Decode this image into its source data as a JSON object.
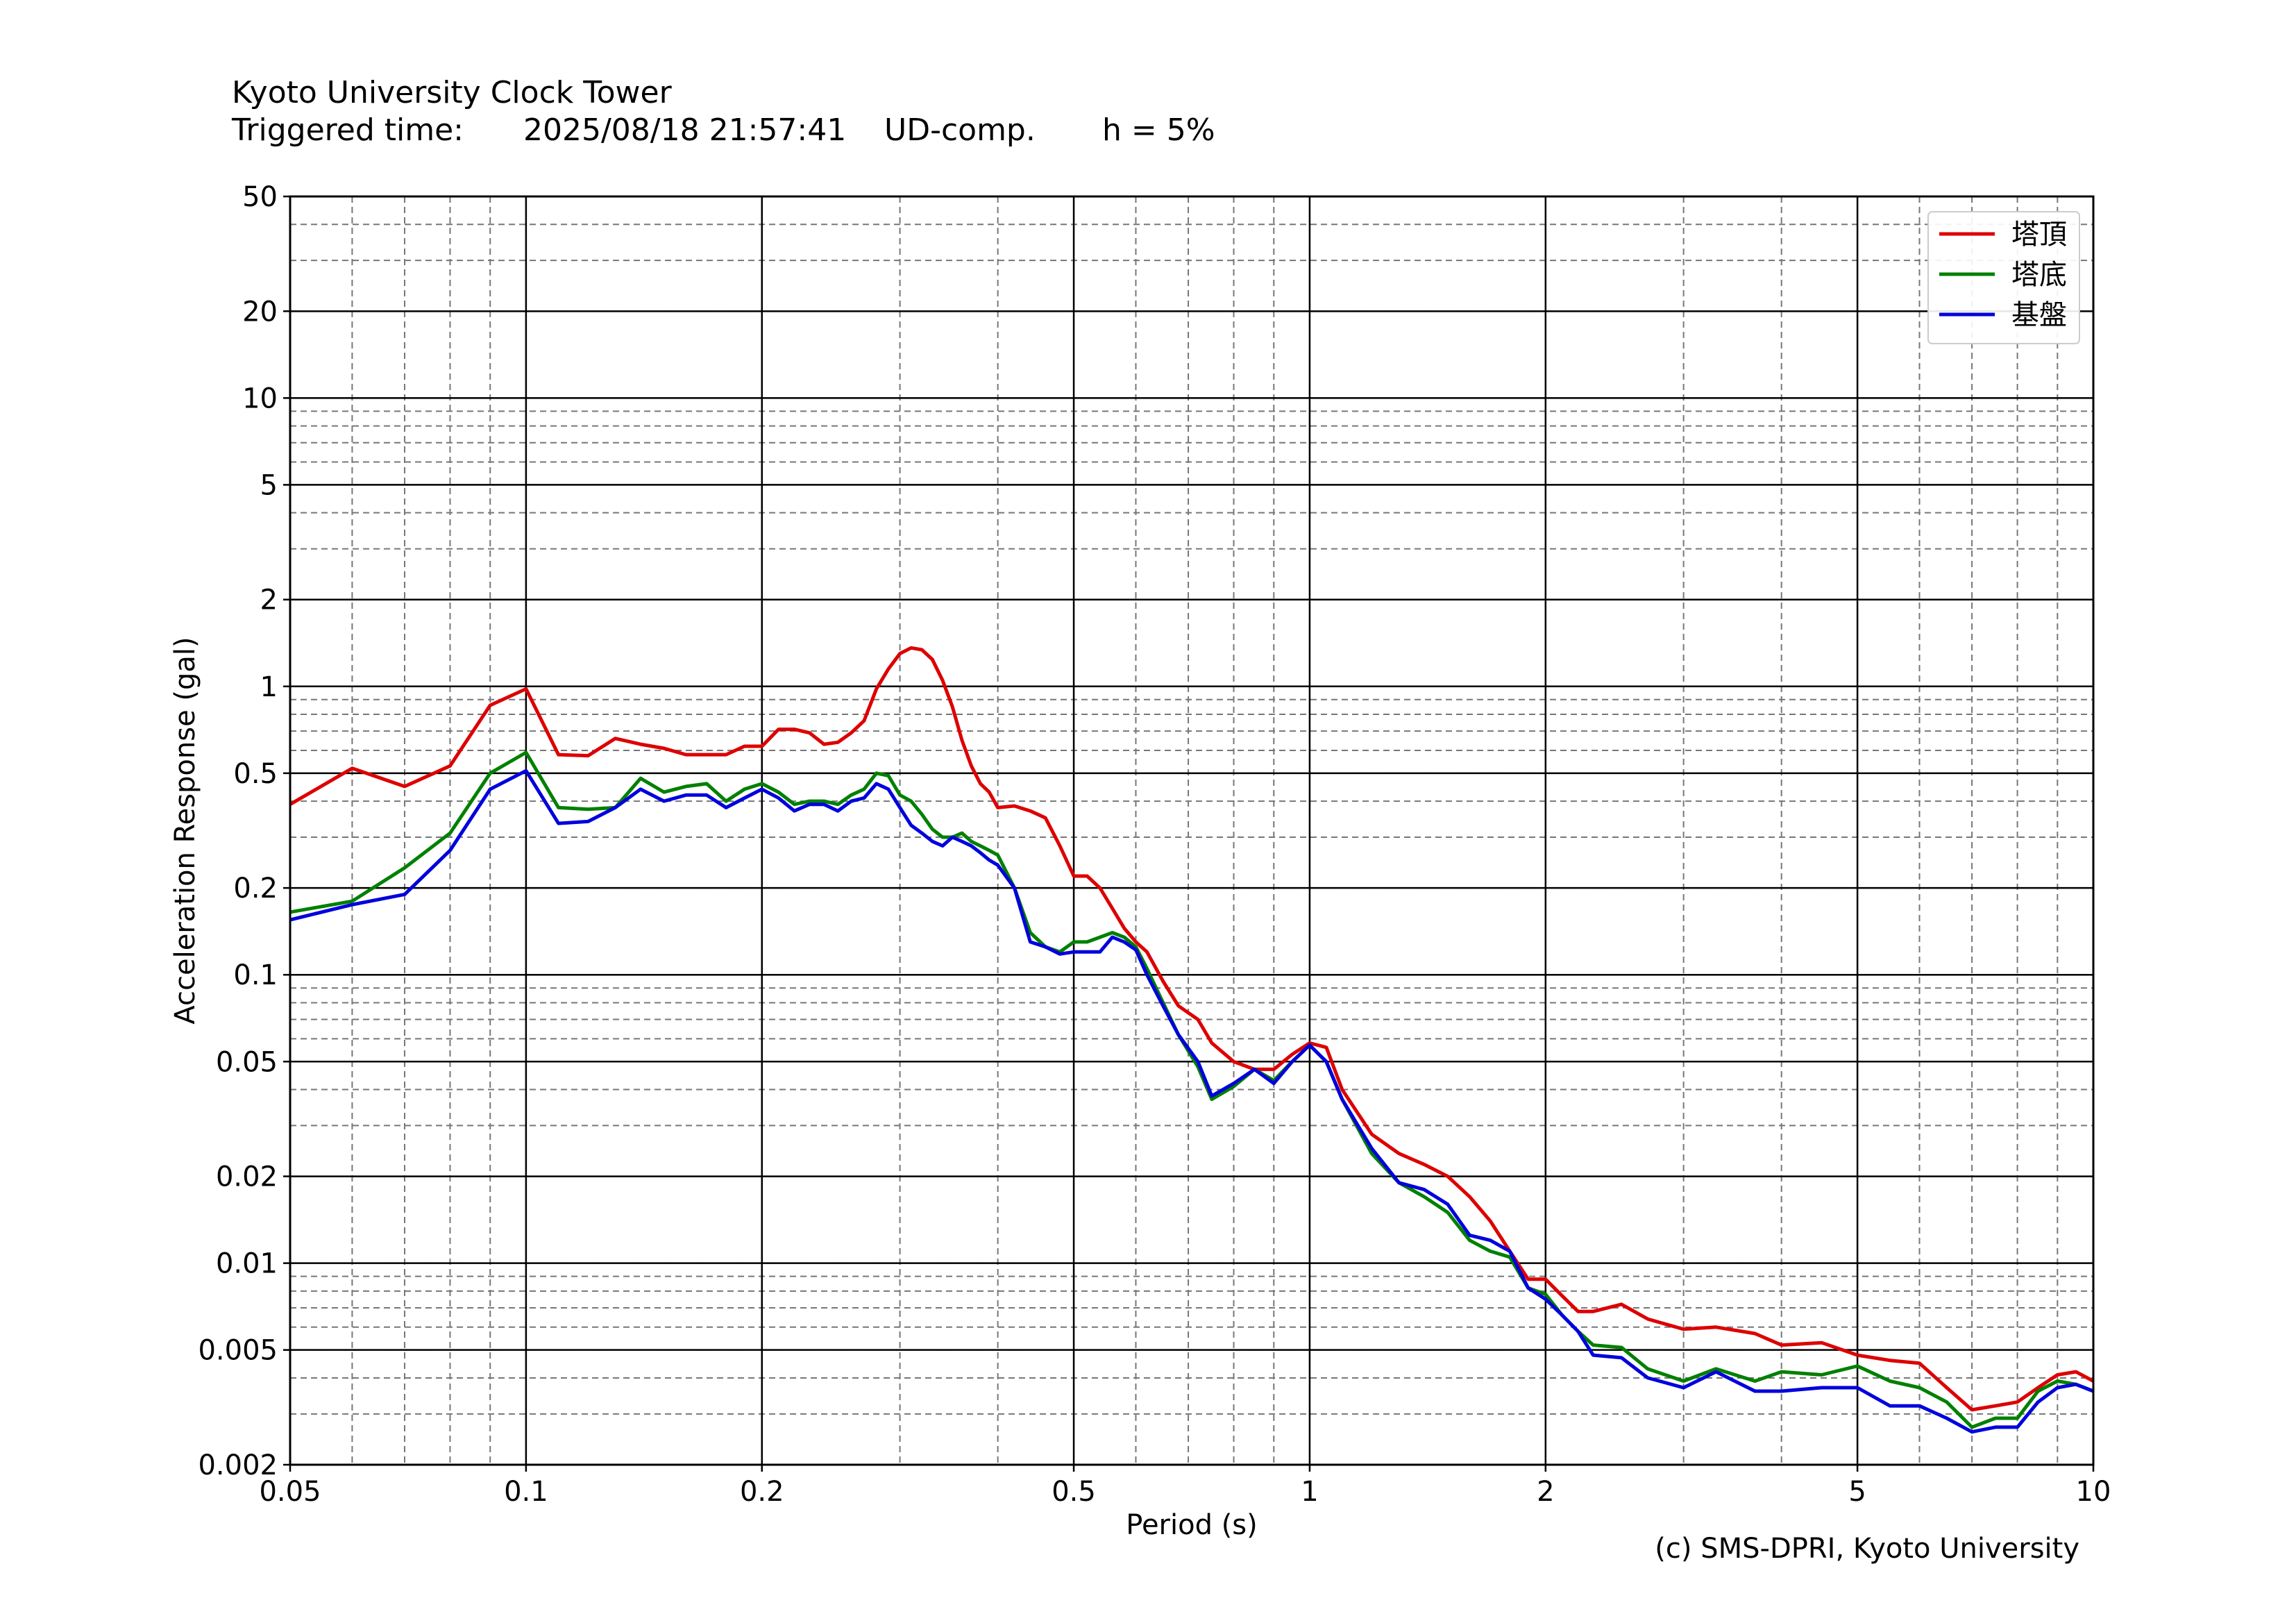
{
  "header": {
    "title": "Kyoto University Clock Tower",
    "triggered_label": "Triggered time:",
    "triggered_time": "2025/08/18 21:57:41",
    "component": "UD-comp.",
    "damping": "h = 5%"
  },
  "credit": "(c) SMS-DPRI, Kyoto University",
  "chart_data": {
    "type": "line",
    "xlabel": "Period (s)",
    "ylabel": "Acceleration Response (gal)",
    "xscale": "log",
    "yscale": "log",
    "xlim": [
      0.05,
      10
    ],
    "ylim": [
      0.002,
      50
    ],
    "xticks": [
      0.05,
      0.1,
      0.2,
      0.5,
      1,
      2,
      5,
      10
    ],
    "xtick_labels": [
      "0.05",
      "0.1",
      "0.2",
      "0.5",
      "1",
      "2",
      "5",
      "10"
    ],
    "yticks": [
      0.002,
      0.005,
      0.01,
      0.02,
      0.05,
      0.1,
      0.2,
      0.5,
      1,
      2,
      5,
      10,
      20,
      50
    ],
    "ytick_labels": [
      "0.002",
      "0.005",
      "0.01",
      "0.02",
      "0.05",
      "0.1",
      "0.2",
      "0.5",
      "1",
      "2",
      "5",
      "10",
      "20",
      "50"
    ],
    "grid": "major solid, minor dashed",
    "legend_position": "top-right",
    "series": [
      {
        "name": "塔頂",
        "color": "#dd0000",
        "points": [
          [
            0.05,
            0.39
          ],
          [
            0.06,
            0.52
          ],
          [
            0.07,
            0.45
          ],
          [
            0.08,
            0.53
          ],
          [
            0.09,
            0.86
          ],
          [
            0.1,
            0.98
          ],
          [
            0.11,
            0.58
          ],
          [
            0.12,
            0.575
          ],
          [
            0.13,
            0.66
          ],
          [
            0.14,
            0.63
          ],
          [
            0.15,
            0.61
          ],
          [
            0.16,
            0.58
          ],
          [
            0.17,
            0.58
          ],
          [
            0.18,
            0.58
          ],
          [
            0.19,
            0.62
          ],
          [
            0.2,
            0.62
          ],
          [
            0.21,
            0.71
          ],
          [
            0.22,
            0.71
          ],
          [
            0.23,
            0.69
          ],
          [
            0.24,
            0.63
          ],
          [
            0.25,
            0.64
          ],
          [
            0.26,
            0.69
          ],
          [
            0.27,
            0.76
          ],
          [
            0.28,
            0.98
          ],
          [
            0.29,
            1.15
          ],
          [
            0.3,
            1.3
          ],
          [
            0.31,
            1.36
          ],
          [
            0.32,
            1.34
          ],
          [
            0.33,
            1.24
          ],
          [
            0.34,
            1.05
          ],
          [
            0.35,
            0.85
          ],
          [
            0.36,
            0.65
          ],
          [
            0.37,
            0.53
          ],
          [
            0.38,
            0.46
          ],
          [
            0.39,
            0.43
          ],
          [
            0.4,
            0.38
          ],
          [
            0.42,
            0.385
          ],
          [
            0.44,
            0.37
          ],
          [
            0.46,
            0.35
          ],
          [
            0.48,
            0.28
          ],
          [
            0.5,
            0.22
          ],
          [
            0.52,
            0.22
          ],
          [
            0.54,
            0.2
          ],
          [
            0.56,
            0.17
          ],
          [
            0.58,
            0.145
          ],
          [
            0.6,
            0.13
          ],
          [
            0.62,
            0.12
          ],
          [
            0.65,
            0.095
          ],
          [
            0.68,
            0.078
          ],
          [
            0.72,
            0.07
          ],
          [
            0.75,
            0.058
          ],
          [
            0.8,
            0.05
          ],
          [
            0.85,
            0.047
          ],
          [
            0.9,
            0.047
          ],
          [
            0.95,
            0.053
          ],
          [
            1.0,
            0.058
          ],
          [
            1.05,
            0.056
          ],
          [
            1.1,
            0.04
          ],
          [
            1.2,
            0.028
          ],
          [
            1.3,
            0.024
          ],
          [
            1.4,
            0.022
          ],
          [
            1.5,
            0.02
          ],
          [
            1.6,
            0.017
          ],
          [
            1.7,
            0.014
          ],
          [
            1.8,
            0.011
          ],
          [
            1.9,
            0.0088
          ],
          [
            2.0,
            0.0088
          ],
          [
            2.1,
            0.0077
          ],
          [
            2.2,
            0.0068
          ],
          [
            2.3,
            0.0068
          ],
          [
            2.5,
            0.0072
          ],
          [
            2.7,
            0.0064
          ],
          [
            3.0,
            0.0059
          ],
          [
            3.3,
            0.006
          ],
          [
            3.7,
            0.0057
          ],
          [
            4.0,
            0.0052
          ],
          [
            4.5,
            0.0053
          ],
          [
            5.0,
            0.0048
          ],
          [
            5.5,
            0.0046
          ],
          [
            6.0,
            0.0045
          ],
          [
            6.5,
            0.0037
          ],
          [
            7.0,
            0.0031
          ],
          [
            7.5,
            0.0032
          ],
          [
            8.0,
            0.0033
          ],
          [
            8.5,
            0.0037
          ],
          [
            9.0,
            0.0041
          ],
          [
            9.5,
            0.0042
          ],
          [
            10.0,
            0.0039
          ]
        ]
      },
      {
        "name": "塔底",
        "color": "#008000",
        "points": [
          [
            0.05,
            0.165
          ],
          [
            0.06,
            0.18
          ],
          [
            0.07,
            0.235
          ],
          [
            0.08,
            0.31
          ],
          [
            0.09,
            0.5
          ],
          [
            0.1,
            0.59
          ],
          [
            0.11,
            0.38
          ],
          [
            0.12,
            0.375
          ],
          [
            0.13,
            0.38
          ],
          [
            0.14,
            0.48
          ],
          [
            0.15,
            0.43
          ],
          [
            0.16,
            0.45
          ],
          [
            0.17,
            0.46
          ],
          [
            0.18,
            0.4
          ],
          [
            0.19,
            0.44
          ],
          [
            0.2,
            0.46
          ],
          [
            0.21,
            0.43
          ],
          [
            0.22,
            0.39
          ],
          [
            0.23,
            0.4
          ],
          [
            0.24,
            0.4
          ],
          [
            0.25,
            0.39
          ],
          [
            0.26,
            0.42
          ],
          [
            0.27,
            0.44
          ],
          [
            0.28,
            0.5
          ],
          [
            0.29,
            0.49
          ],
          [
            0.3,
            0.42
          ],
          [
            0.31,
            0.4
          ],
          [
            0.32,
            0.36
          ],
          [
            0.33,
            0.32
          ],
          [
            0.34,
            0.3
          ],
          [
            0.35,
            0.3
          ],
          [
            0.36,
            0.31
          ],
          [
            0.37,
            0.29
          ],
          [
            0.38,
            0.28
          ],
          [
            0.39,
            0.27
          ],
          [
            0.4,
            0.26
          ],
          [
            0.42,
            0.2
          ],
          [
            0.44,
            0.14
          ],
          [
            0.46,
            0.125
          ],
          [
            0.48,
            0.12
          ],
          [
            0.5,
            0.13
          ],
          [
            0.52,
            0.13
          ],
          [
            0.54,
            0.135
          ],
          [
            0.56,
            0.14
          ],
          [
            0.58,
            0.135
          ],
          [
            0.6,
            0.125
          ],
          [
            0.62,
            0.105
          ],
          [
            0.65,
            0.08
          ],
          [
            0.68,
            0.062
          ],
          [
            0.72,
            0.048
          ],
          [
            0.75,
            0.037
          ],
          [
            0.8,
            0.041
          ],
          [
            0.85,
            0.047
          ],
          [
            0.9,
            0.043
          ],
          [
            0.95,
            0.05
          ],
          [
            1.0,
            0.057
          ],
          [
            1.05,
            0.05
          ],
          [
            1.1,
            0.037
          ],
          [
            1.2,
            0.024
          ],
          [
            1.3,
            0.019
          ],
          [
            1.4,
            0.017
          ],
          [
            1.5,
            0.015
          ],
          [
            1.6,
            0.012
          ],
          [
            1.7,
            0.011
          ],
          [
            1.8,
            0.0105
          ],
          [
            1.9,
            0.0082
          ],
          [
            2.0,
            0.0078
          ],
          [
            2.1,
            0.0066
          ],
          [
            2.2,
            0.0058
          ],
          [
            2.3,
            0.0052
          ],
          [
            2.5,
            0.0051
          ],
          [
            2.7,
            0.0043
          ],
          [
            3.0,
            0.0039
          ],
          [
            3.3,
            0.0043
          ],
          [
            3.7,
            0.0039
          ],
          [
            4.0,
            0.0042
          ],
          [
            4.5,
            0.0041
          ],
          [
            5.0,
            0.0044
          ],
          [
            5.5,
            0.0039
          ],
          [
            6.0,
            0.0037
          ],
          [
            6.5,
            0.0033
          ],
          [
            7.0,
            0.0027
          ],
          [
            7.5,
            0.0029
          ],
          [
            8.0,
            0.0029
          ],
          [
            8.5,
            0.0036
          ],
          [
            9.0,
            0.0039
          ],
          [
            9.5,
            0.0038
          ],
          [
            10.0,
            0.0036
          ]
        ]
      },
      {
        "name": "基盤",
        "color": "#0000dd",
        "points": [
          [
            0.05,
            0.155
          ],
          [
            0.06,
            0.175
          ],
          [
            0.07,
            0.19
          ],
          [
            0.08,
            0.27
          ],
          [
            0.09,
            0.44
          ],
          [
            0.1,
            0.51
          ],
          [
            0.11,
            0.335
          ],
          [
            0.12,
            0.34
          ],
          [
            0.13,
            0.38
          ],
          [
            0.14,
            0.44
          ],
          [
            0.15,
            0.4
          ],
          [
            0.16,
            0.42
          ],
          [
            0.17,
            0.42
          ],
          [
            0.18,
            0.38
          ],
          [
            0.19,
            0.41
          ],
          [
            0.2,
            0.44
          ],
          [
            0.21,
            0.41
          ],
          [
            0.22,
            0.37
          ],
          [
            0.23,
            0.39
          ],
          [
            0.24,
            0.39
          ],
          [
            0.25,
            0.37
          ],
          [
            0.26,
            0.4
          ],
          [
            0.27,
            0.41
          ],
          [
            0.28,
            0.46
          ],
          [
            0.29,
            0.44
          ],
          [
            0.3,
            0.38
          ],
          [
            0.31,
            0.33
          ],
          [
            0.32,
            0.31
          ],
          [
            0.33,
            0.29
          ],
          [
            0.34,
            0.28
          ],
          [
            0.35,
            0.3
          ],
          [
            0.36,
            0.29
          ],
          [
            0.37,
            0.28
          ],
          [
            0.38,
            0.265
          ],
          [
            0.39,
            0.25
          ],
          [
            0.4,
            0.24
          ],
          [
            0.42,
            0.2
          ],
          [
            0.44,
            0.13
          ],
          [
            0.46,
            0.125
          ],
          [
            0.48,
            0.118
          ],
          [
            0.5,
            0.12
          ],
          [
            0.52,
            0.12
          ],
          [
            0.54,
            0.12
          ],
          [
            0.56,
            0.135
          ],
          [
            0.58,
            0.13
          ],
          [
            0.6,
            0.122
          ],
          [
            0.62,
            0.1
          ],
          [
            0.65,
            0.078
          ],
          [
            0.68,
            0.062
          ],
          [
            0.72,
            0.05
          ],
          [
            0.75,
            0.038
          ],
          [
            0.8,
            0.042
          ],
          [
            0.85,
            0.047
          ],
          [
            0.9,
            0.042
          ],
          [
            0.95,
            0.05
          ],
          [
            1.0,
            0.057
          ],
          [
            1.05,
            0.05
          ],
          [
            1.1,
            0.037
          ],
          [
            1.2,
            0.025
          ],
          [
            1.3,
            0.019
          ],
          [
            1.4,
            0.018
          ],
          [
            1.5,
            0.016
          ],
          [
            1.6,
            0.0125
          ],
          [
            1.7,
            0.012
          ],
          [
            1.8,
            0.011
          ],
          [
            1.9,
            0.0082
          ],
          [
            2.0,
            0.0075
          ],
          [
            2.1,
            0.0066
          ],
          [
            2.2,
            0.0058
          ],
          [
            2.3,
            0.0048
          ],
          [
            2.5,
            0.0047
          ],
          [
            2.7,
            0.004
          ],
          [
            3.0,
            0.0037
          ],
          [
            3.3,
            0.0042
          ],
          [
            3.7,
            0.0036
          ],
          [
            4.0,
            0.0036
          ],
          [
            4.5,
            0.0037
          ],
          [
            5.0,
            0.0037
          ],
          [
            5.5,
            0.0032
          ],
          [
            6.0,
            0.0032
          ],
          [
            6.5,
            0.0029
          ],
          [
            7.0,
            0.0026
          ],
          [
            7.5,
            0.0027
          ],
          [
            8.0,
            0.0027
          ],
          [
            8.5,
            0.0033
          ],
          [
            9.0,
            0.0037
          ],
          [
            9.5,
            0.0038
          ],
          [
            10.0,
            0.0036
          ]
        ]
      }
    ]
  }
}
